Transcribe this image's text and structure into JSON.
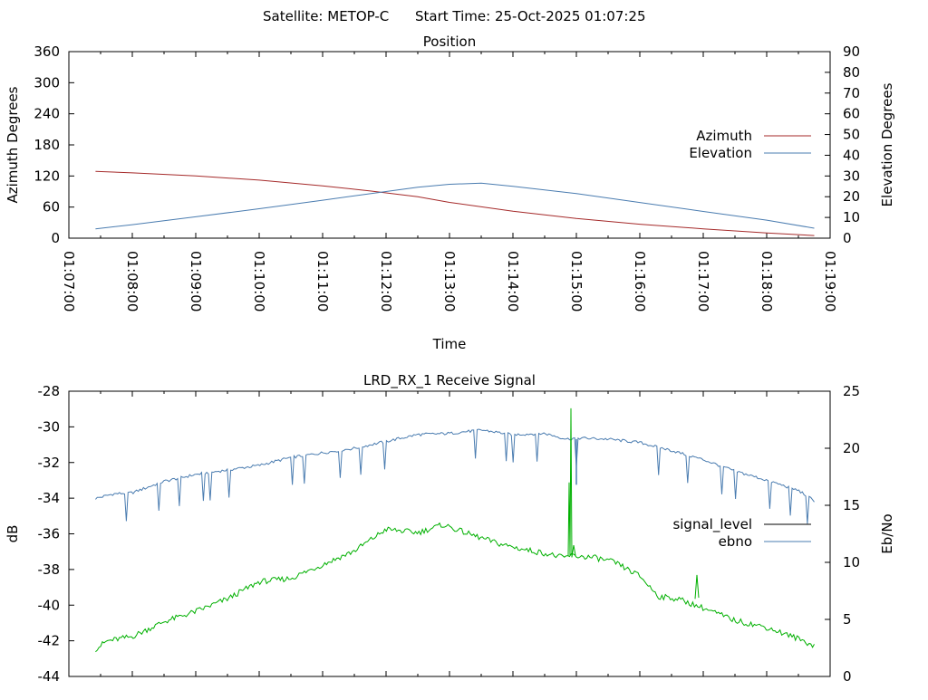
{
  "header": {
    "satellite": "Satellite: METOP-C",
    "start_time": "Start Time: 25-Oct-2025 01:07:25"
  },
  "chart_data": [
    {
      "type": "line",
      "title": "Position",
      "xlabel": "Time",
      "ylabel": "Azimuth Degrees",
      "y2label": "Elevation Degrees",
      "xticks": [
        "01:07:00",
        "01:08:00",
        "01:09:00",
        "01:10:00",
        "01:11:00",
        "01:12:00",
        "01:13:00",
        "01:14:00",
        "01:15:00",
        "01:16:00",
        "01:17:00",
        "01:18:00",
        "01:19:00"
      ],
      "xlim": [
        0,
        12
      ],
      "ylim": [
        0,
        360
      ],
      "yticks": [
        0,
        60,
        120,
        180,
        240,
        300,
        360
      ],
      "y2lim": [
        0,
        90
      ],
      "y2ticks": [
        0,
        10,
        20,
        30,
        40,
        50,
        60,
        70,
        80,
        90
      ],
      "legend_position": "right",
      "series": [
        {
          "name": "Azimuth",
          "axis": "y",
          "color": "#a52a2a",
          "x": [
            0.42,
            1,
            2,
            3,
            4,
            4.75,
            5.5,
            6,
            7,
            8,
            9,
            10,
            11,
            11.75
          ],
          "y": [
            129,
            126,
            120,
            112,
            101,
            91,
            80,
            69,
            52,
            38,
            27,
            18,
            10,
            5
          ]
        },
        {
          "name": "Elevation",
          "axis": "y2",
          "color": "#4a7cb0",
          "x": [
            0.42,
            1,
            2,
            3,
            4,
            5,
            5.5,
            6,
            6.5,
            7,
            8,
            9,
            10,
            11,
            11.75
          ],
          "y": [
            4.5,
            6.5,
            10.3,
            14.2,
            18.3,
            22.5,
            24.6,
            26.0,
            26.5,
            25.0,
            21.5,
            17.2,
            12.9,
            8.7,
            4.8
          ]
        }
      ]
    },
    {
      "type": "line",
      "title": "LRD_RX_1 Receive Signal",
      "ylabel": "dB",
      "y2label": "Eb/No",
      "xlim": [
        0,
        12
      ],
      "ylim": [
        -44,
        -28
      ],
      "yticks": [
        -44,
        -42,
        -40,
        -38,
        -36,
        -34,
        -32,
        -30,
        -28
      ],
      "y2lim": [
        0,
        25
      ],
      "y2ticks": [
        0,
        5,
        10,
        15,
        20,
        25
      ],
      "legend_position": "right",
      "series": [
        {
          "name": "signal_level",
          "axis": "y",
          "color": "#000000",
          "x": [],
          "y": []
        },
        {
          "name": "ebno",
          "axis": "y2",
          "color": "#4a7cb0",
          "x": [
            0.42,
            0.7,
            1.0,
            1.5,
            2.0,
            2.5,
            3.0,
            3.5,
            4.0,
            4.5,
            5.0,
            5.5,
            6.0,
            6.5,
            7.0,
            7.5,
            7.85,
            8.0,
            8.5,
            9.0,
            9.5,
            10.0,
            10.5,
            11.0,
            11.5,
            11.75
          ],
          "y": [
            15.6,
            16.0,
            16.1,
            17.1,
            17.7,
            18.1,
            18.5,
            19.2,
            19.6,
            20.0,
            20.6,
            21.2,
            21.3,
            21.6,
            21.2,
            21.3,
            20.8,
            20.9,
            20.8,
            20.5,
            19.8,
            19.0,
            18.0,
            17.2,
            16.3,
            15.4
          ]
        },
        {
          "name": "",
          "axis": "y2",
          "color": "#00b000",
          "x": [
            0.42,
            0.6,
            1.0,
            1.5,
            2.0,
            2.5,
            3.0,
            3.5,
            4.0,
            4.5,
            5.0,
            5.5,
            5.9,
            6.3,
            6.8,
            7.2,
            7.5,
            7.8,
            7.9,
            8.3,
            8.6,
            9.0,
            9.3,
            9.6,
            10.0,
            10.5,
            11.0,
            11.5,
            11.75
          ],
          "y": [
            2.4,
            3.1,
            3.5,
            4.8,
            5.7,
            6.8,
            8.3,
            8.6,
            9.8,
            11.0,
            12.9,
            12.6,
            13.3,
            12.5,
            11.6,
            11.1,
            10.8,
            10.4,
            10.6,
            10.4,
            10.0,
            8.8,
            7.0,
            6.8,
            6.0,
            4.9,
            4.3,
            3.3,
            2.7
          ]
        }
      ]
    }
  ]
}
